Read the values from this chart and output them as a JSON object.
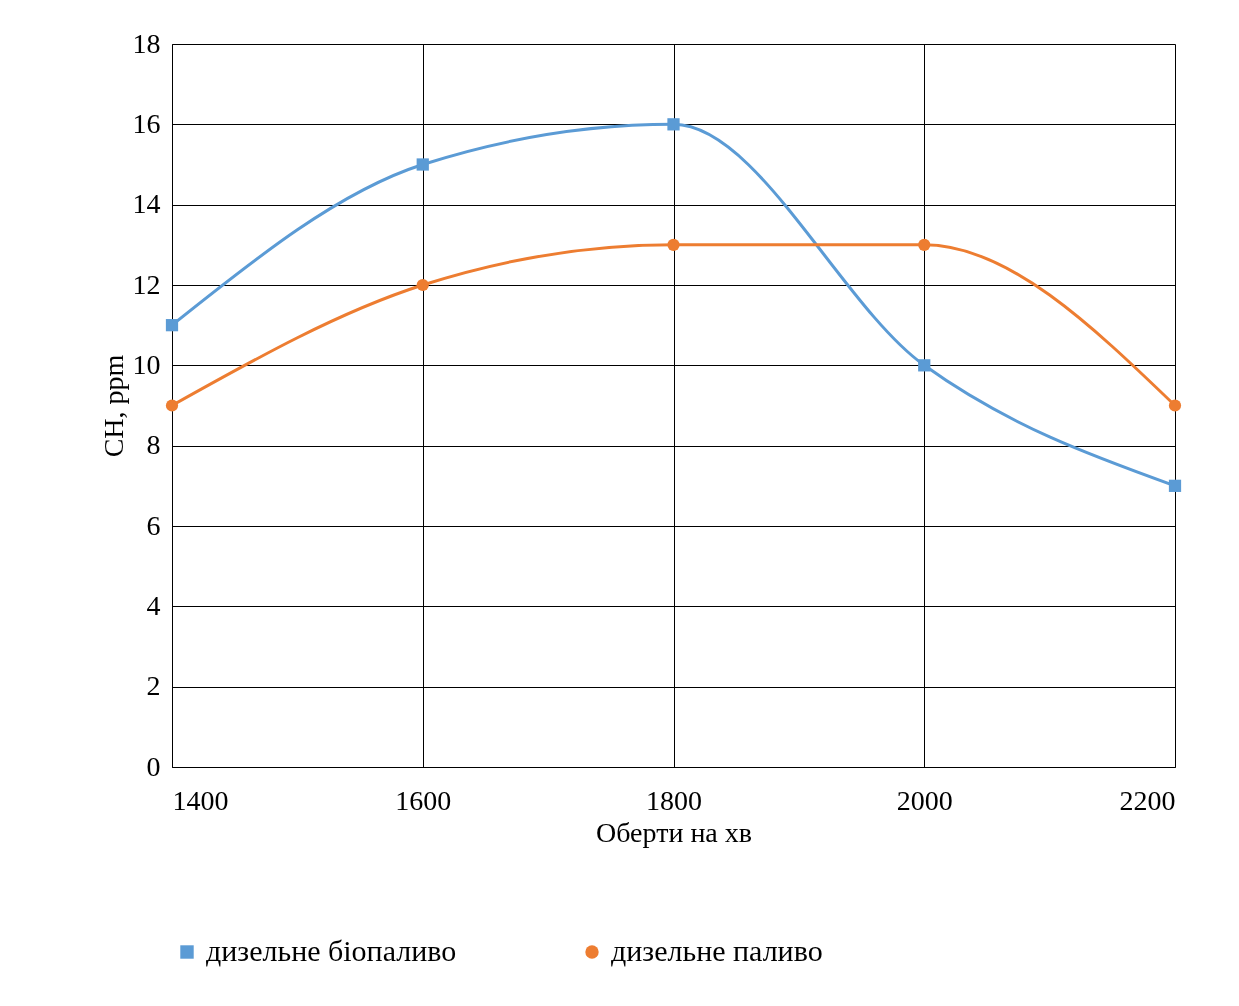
{
  "chart_data": {
    "type": "line",
    "xlabel": "Оберти на хв",
    "ylabel": "CH, ppm",
    "x": [
      1400,
      1600,
      1800,
      2000,
      2200
    ],
    "series": [
      {
        "name": "дизельне біопаливо",
        "color": "#5b9bd5",
        "marker": "square",
        "values": [
          11,
          15,
          16,
          10,
          7
        ]
      },
      {
        "name": "дизельне паливо",
        "color": "#ed7d31",
        "marker": "circle",
        "values": [
          9,
          12,
          13,
          13,
          9
        ]
      }
    ],
    "xlim": [
      1400,
      2200
    ],
    "xticks": [
      1400,
      1600,
      1800,
      2000,
      2200
    ],
    "ylim": [
      0,
      18
    ],
    "yticks": [
      0,
      2,
      4,
      6,
      8,
      10,
      12,
      14,
      16,
      18
    ],
    "grid": true,
    "legend": "bottom"
  }
}
